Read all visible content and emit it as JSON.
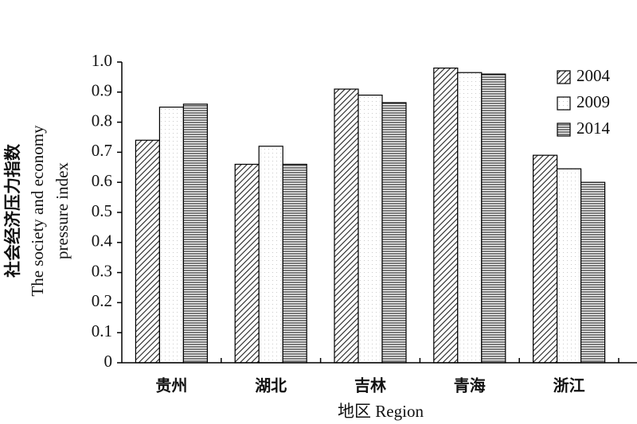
{
  "chart_data": {
    "type": "bar",
    "y_label": [
      "社会经济压力指数",
      "The society and economy",
      "pressure index"
    ],
    "x_label": "地区 Region",
    "categories": [
      "贵州",
      "湖北",
      "吉林",
      "青海",
      "浙江"
    ],
    "series": [
      {
        "name": "2004",
        "color": "#222222",
        "pattern": "diagonal",
        "values": [
          0.74,
          0.66,
          0.91,
          0.98,
          0.69
        ]
      },
      {
        "name": "2009",
        "color": "#888888",
        "pattern": "dots",
        "values": [
          0.85,
          0.72,
          0.89,
          0.965,
          0.645
        ]
      },
      {
        "name": "2014",
        "color": "#333333",
        "pattern": "horizontal",
        "values": [
          0.86,
          0.66,
          0.865,
          0.96,
          0.6
        ]
      }
    ],
    "ylim": [
      0,
      1
    ],
    "yticks": [
      0,
      0.1,
      0.2,
      0.3,
      0.4,
      0.5,
      0.6,
      0.7,
      0.8,
      0.9,
      {
        "value": 1,
        "label": "1.0"
      }
    ],
    "legend": "upper right"
  }
}
